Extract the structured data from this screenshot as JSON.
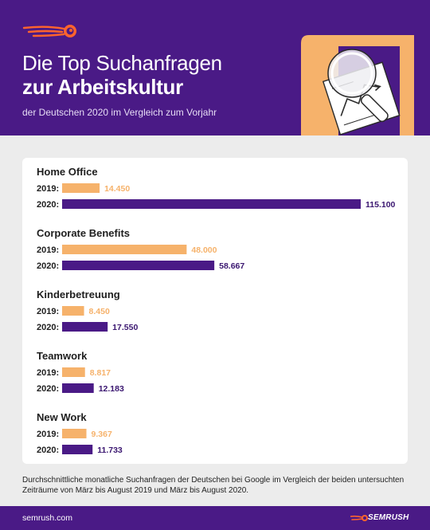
{
  "header": {
    "title_line1": "Die Top Suchanfragen",
    "title_line2": "zur Arbeitskultur",
    "subtitle": "der Deutschen 2020 im Vergleich zum Vorjahr",
    "logo_icon": "semrush-comet-icon",
    "illustration_icon": "magnifier-document-icon"
  },
  "chart_data": {
    "type": "bar",
    "orientation": "horizontal",
    "value_max": 115100,
    "groups": [
      {
        "label": "Home Office",
        "bars": [
          {
            "year": "2019:",
            "value": 14450,
            "label": "14.450"
          },
          {
            "year": "2020:",
            "value": 115100,
            "label": "115.100"
          }
        ]
      },
      {
        "label": "Corporate Benefits",
        "bars": [
          {
            "year": "2019:",
            "value": 48000,
            "label": "48.000"
          },
          {
            "year": "2020:",
            "value": 58667,
            "label": "58.667"
          }
        ]
      },
      {
        "label": "Kinderbetreuung",
        "bars": [
          {
            "year": "2019:",
            "value": 8450,
            "label": "8.450"
          },
          {
            "year": "2020:",
            "value": 17550,
            "label": "17.550"
          }
        ]
      },
      {
        "label": "Teamwork",
        "bars": [
          {
            "year": "2019:",
            "value": 8817,
            "label": "8.817"
          },
          {
            "year": "2020:",
            "value": 12183,
            "label": "12.183"
          }
        ]
      },
      {
        "label": "New Work",
        "bars": [
          {
            "year": "2019:",
            "value": 9367,
            "label": "9.367"
          },
          {
            "year": "2020:",
            "value": 11733,
            "label": "11.733"
          }
        ]
      }
    ],
    "colors": {
      "2019": "#f6b26b",
      "2020": "#4a1a86"
    }
  },
  "note": "Durchschnittliche monatliche Suchanfragen der Deutschen bei Google im Vergleich der beiden untersuchten Zeiträume von März bis August 2019 und März bis August 2020.",
  "footer": {
    "url": "semrush.com",
    "brand": "SEMRUSH",
    "brand_icon": "semrush-logo-icon"
  }
}
